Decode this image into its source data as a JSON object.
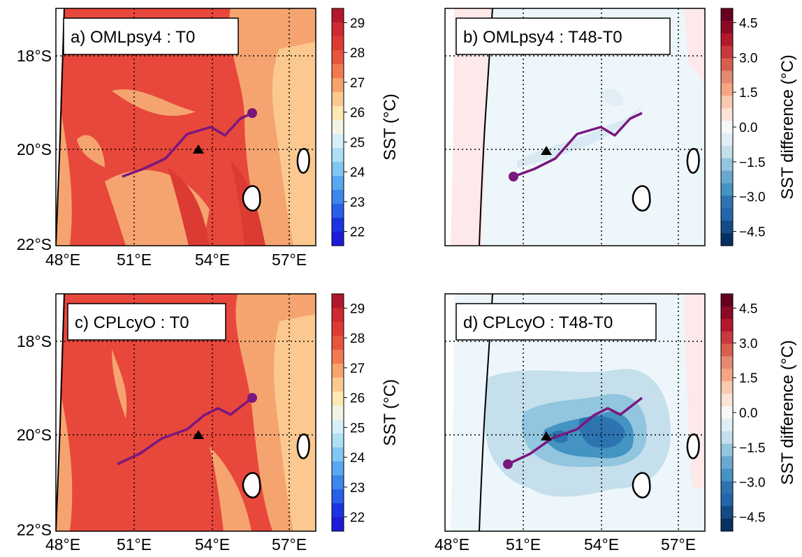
{
  "panels": [
    {
      "id": "a",
      "label": "a) OMLpsy4 : T0",
      "kind": "sst"
    },
    {
      "id": "b",
      "label": "b) OMLpsy4 : T48-T0",
      "kind": "diff"
    },
    {
      "id": "c",
      "label": "c) CPLcyO : T0",
      "kind": "sst"
    },
    {
      "id": "d",
      "label": "d) CPLcyO : T48-T0",
      "kind": "diff"
    }
  ],
  "axes": {
    "lat_ticks": [
      "18°S",
      "20°S",
      "22°S"
    ],
    "lon_ticks": [
      "48°E",
      "51°E",
      "54°E",
      "57°E"
    ]
  },
  "colorbars": {
    "sst": {
      "label": "SST (°C)",
      "ticks": [
        "29",
        "28",
        "27",
        "26",
        "25",
        "24",
        "23",
        "22"
      ],
      "colors": [
        "#b2182b",
        "#cc2a2f",
        "#dc3b34",
        "#e8553f",
        "#f17a52",
        "#f7a36d",
        "#fbc98f",
        "#fde7b2",
        "#f4f4e6",
        "#d7f0f8",
        "#aedff5",
        "#82c7f2",
        "#5aa7ef",
        "#3c86ec",
        "#2860e8",
        "#1c34e0",
        "#1d1bd8"
      ]
    },
    "diff": {
      "label": "SST difference (°C)",
      "ticks": [
        "4.5",
        "3.0",
        "1.5",
        "0.0",
        "−1.5",
        "−3.0",
        "−4.5"
      ],
      "colors": [
        "#67001f",
        "#8b0a26",
        "#b2182b",
        "#c63a3e",
        "#d6604d",
        "#e58a72",
        "#f4a582",
        "#f9c9b2",
        "#fde3d7",
        "#f7f7f7",
        "#e1eef5",
        "#c5dfec",
        "#92c5de",
        "#6aa8d0",
        "#4393c3",
        "#2c73b0",
        "#2166ac",
        "#144a85",
        "#053061"
      ]
    }
  },
  "map_colors": {
    "sst_base": "#e8473c",
    "sst_warm_dark": "#dc3b34",
    "sst_cool": "#f5a470",
    "sst_coolest": "#fbc98f",
    "diff_base": "#edf6fa",
    "diff_land_side": "#fde8ea",
    "track": "#7a177e"
  },
  "chart_data": [
    {
      "type": "heatmap",
      "title": "a) OMLpsy4 : T0",
      "ylabel": "",
      "xlabel": "",
      "colorbar_label": "SST (°C)",
      "value_range": [
        22,
        29.5
      ],
      "track_lonlat": [
        [
          50.5,
          -20.75
        ],
        [
          51.3,
          -20.5
        ],
        [
          52.2,
          -20.25
        ],
        [
          53.0,
          -19.7
        ],
        [
          54.1,
          -19.5
        ],
        [
          54.5,
          -19.7
        ],
        [
          55.0,
          -19.2
        ],
        [
          55.5,
          -19.1
        ]
      ],
      "start_marker": [
        55.5,
        -19.1
      ],
      "triangle_marker": [
        53.5,
        -20.0
      ]
    },
    {
      "type": "heatmap",
      "title": "b) OMLpsy4 : T48-T0",
      "ylabel": "",
      "xlabel": "",
      "colorbar_label": "SST difference (°C)",
      "value_range": [
        -5,
        5
      ],
      "track_lonlat": [
        [
          50.5,
          -20.75
        ],
        [
          51.3,
          -20.5
        ],
        [
          52.2,
          -20.25
        ],
        [
          53.0,
          -19.7
        ],
        [
          54.1,
          -19.5
        ],
        [
          54.5,
          -19.7
        ],
        [
          55.0,
          -19.2
        ],
        [
          55.5,
          -19.1
        ]
      ],
      "start_marker": [
        50.5,
        -20.75
      ],
      "triangle_marker": [
        51.8,
        -20.0
      ]
    },
    {
      "type": "heatmap",
      "title": "c) CPLcyO : T0",
      "ylabel": "",
      "xlabel": "",
      "colorbar_label": "SST (°C)",
      "value_range": [
        22,
        29.5
      ],
      "track_lonlat": [
        [
          50.3,
          -20.85
        ],
        [
          51.2,
          -20.5
        ],
        [
          52.0,
          -20.1
        ],
        [
          53.0,
          -19.8
        ],
        [
          53.8,
          -19.5
        ],
        [
          54.3,
          -19.4
        ],
        [
          54.8,
          -19.5
        ],
        [
          55.5,
          -19.2
        ]
      ],
      "start_marker": [
        55.5,
        -19.2
      ],
      "triangle_marker": [
        53.5,
        -20.0
      ]
    },
    {
      "type": "heatmap",
      "title": "d) CPLcyO : T48-T0",
      "ylabel": "",
      "xlabel": "",
      "colorbar_label": "SST difference (°C)",
      "value_range": [
        -5,
        5
      ],
      "track_lonlat": [
        [
          50.3,
          -20.85
        ],
        [
          51.2,
          -20.5
        ],
        [
          52.0,
          -20.1
        ],
        [
          53.0,
          -19.8
        ],
        [
          53.8,
          -19.5
        ],
        [
          54.3,
          -19.4
        ],
        [
          54.8,
          -19.5
        ],
        [
          55.5,
          -19.2
        ]
      ],
      "start_marker": [
        50.3,
        -20.85
      ],
      "triangle_marker": [
        51.8,
        -20.0
      ]
    }
  ]
}
